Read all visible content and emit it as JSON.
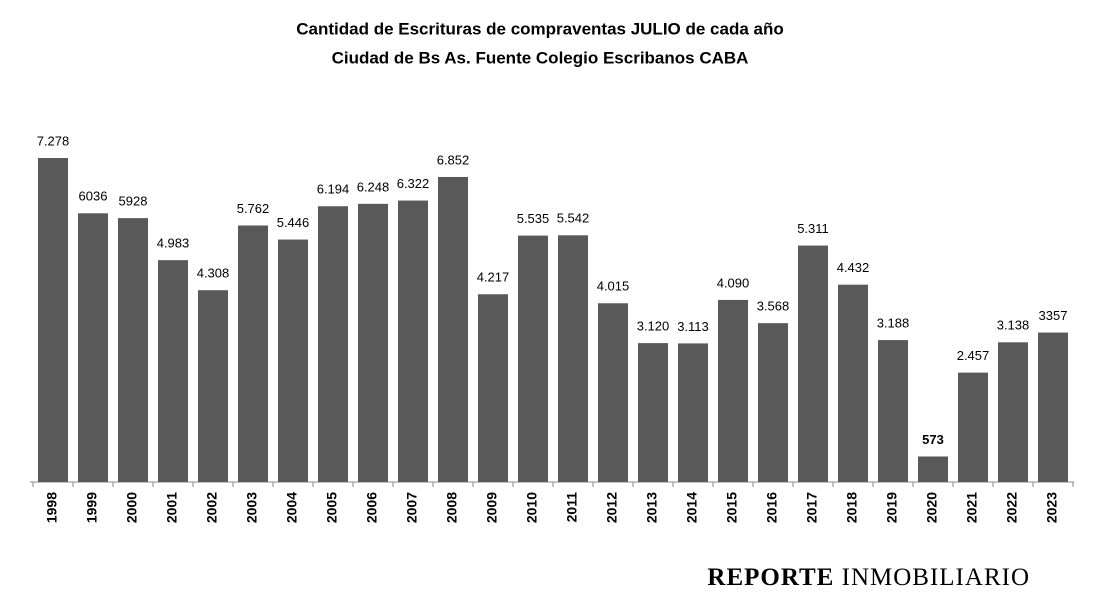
{
  "chart_data": {
    "type": "bar",
    "title": "Cantidad de Escrituras de compraventas JULIO de cada año",
    "subtitle": "Ciudad de Bs As. Fuente Colegio Escribanos CABA",
    "categories": [
      "1998",
      "1999",
      "2000",
      "2001",
      "2002",
      "2003",
      "2004",
      "2005",
      "2006",
      "2007",
      "2008",
      "2009",
      "2010",
      "2011",
      "2012",
      "2013",
      "2014",
      "2015",
      "2016",
      "2017",
      "2018",
      "2019",
      "2020",
      "2021",
      "2022",
      "2023"
    ],
    "values": [
      7278,
      6036,
      5928,
      4983,
      4308,
      5762,
      5446,
      6194,
      6248,
      6322,
      6852,
      4217,
      5535,
      5542,
      4015,
      3120,
      3113,
      4090,
      3568,
      5311,
      4432,
      3188,
      573,
      2457,
      3138,
      3357
    ],
    "value_labels": [
      "7.278",
      "6036",
      "5928",
      "4.983",
      "4.308",
      "5.762",
      "5.446",
      "6.194",
      "6.248",
      "6.322",
      "6.852",
      "4.217",
      "5.535",
      "5.542",
      "4.015",
      "3.120",
      "3.113",
      "4.090",
      "3.568",
      "5.311",
      "4.432",
      "3.188",
      "573",
      "2.457",
      "3.138",
      "3357"
    ],
    "color": "#595959"
  },
  "watermark": {
    "bold": "REPORTE",
    "regular": "INMOBILIARIO"
  }
}
